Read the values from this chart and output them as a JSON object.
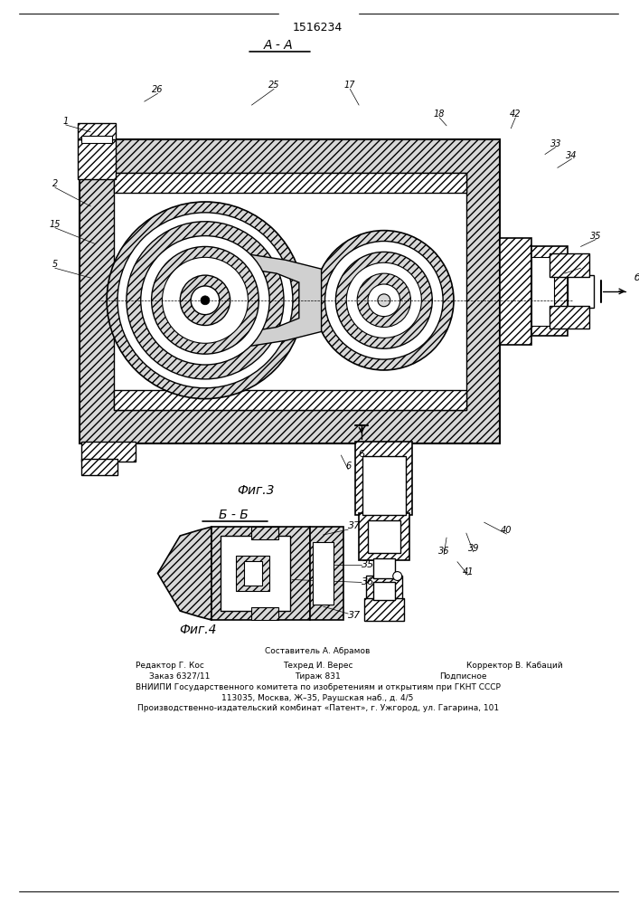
{
  "title": "1516234",
  "fig3_label": "Фиг.3",
  "fig4_label": "Фиг.4",
  "section_aa": "А - А",
  "section_bb": "Б - Б",
  "bg_color": "#ffffff",
  "footer_line1": "Составитель А. Абрамов",
  "footer_line2_left": "Редактор Г. Кос",
  "footer_line2_mid": "Техред И. Верес",
  "footer_line2_right": "Корректор В. Кабаций",
  "footer_line3_left": "Заказ 6327/11",
  "footer_line3_mid": "Тираж 831",
  "footer_line3_right": "Подписное",
  "footer_line4": "ВНИИПИ Государственного комитета по изобретениям и открытиям при ГКНТ СССР",
  "footer_line5": "113035, Москва, Ж–35, Раушская наб., д. 4/5",
  "footer_line6": "Производственно-издательский комбинат «Патент», г. Ужгород, ул. Гагарина, 101"
}
